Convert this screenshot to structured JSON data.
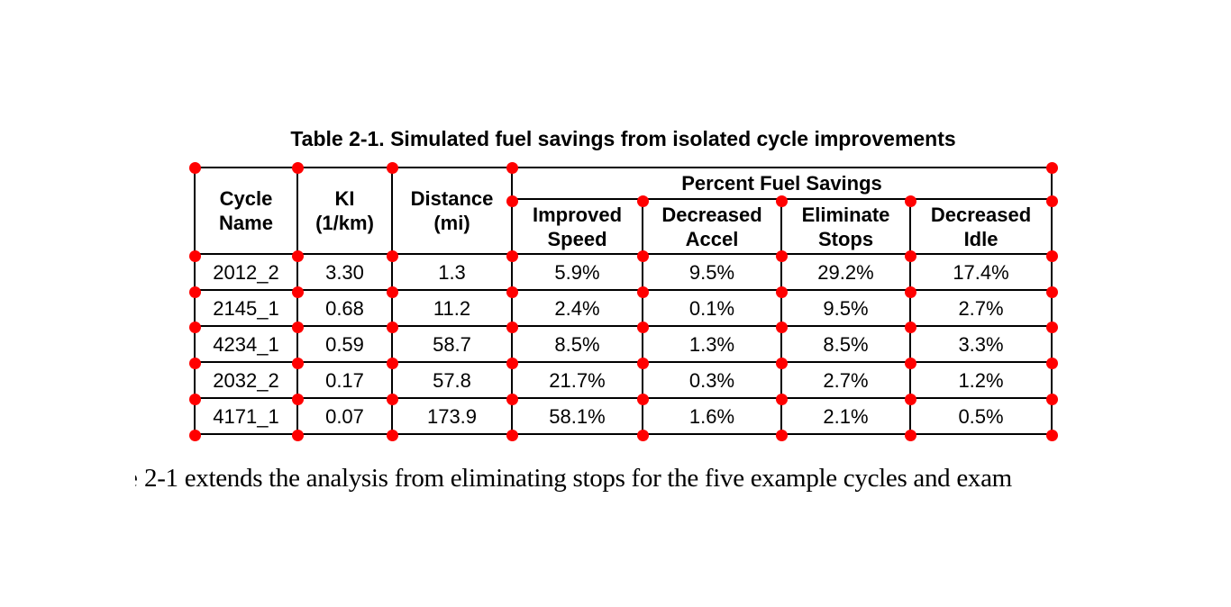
{
  "title": "Table 2-1. Simulated fuel savings from isolated cycle improvements",
  "table": {
    "group_header": "Percent Fuel Savings",
    "columns": [
      {
        "line1": "Cycle",
        "line2": "Name"
      },
      {
        "line1": "KI",
        "line2": "(1/km)"
      },
      {
        "line1": "Distance",
        "line2": "(mi)"
      },
      {
        "line1": "Improved",
        "line2": "Speed"
      },
      {
        "line1": "Decreased",
        "line2": "Accel"
      },
      {
        "line1": "Eliminate",
        "line2": "Stops"
      },
      {
        "line1": "Decreased",
        "line2": "Idle"
      }
    ],
    "rows": [
      [
        "2012_2",
        "3.30",
        "1.3",
        "5.9%",
        "9.5%",
        "29.2%",
        "17.4%"
      ],
      [
        "2145_1",
        "0.68",
        "11.2",
        "2.4%",
        "0.1%",
        "9.5%",
        "2.7%"
      ],
      [
        "4234_1",
        "0.59",
        "58.7",
        "8.5%",
        "1.3%",
        "8.5%",
        "3.3%"
      ],
      [
        "2032_2",
        "0.17",
        "57.8",
        "21.7%",
        "0.3%",
        "2.7%",
        "1.2%"
      ],
      [
        "4171_1",
        "0.07",
        "173.9",
        "58.1%",
        "1.6%",
        "2.1%",
        "0.5%"
      ]
    ]
  },
  "annotations": {
    "marker_color": "#ff0000"
  },
  "body_text": {
    "clipped_prefix": "e",
    "line": "2-1 extends the analysis from eliminating stops for the five example cycles and exam"
  }
}
